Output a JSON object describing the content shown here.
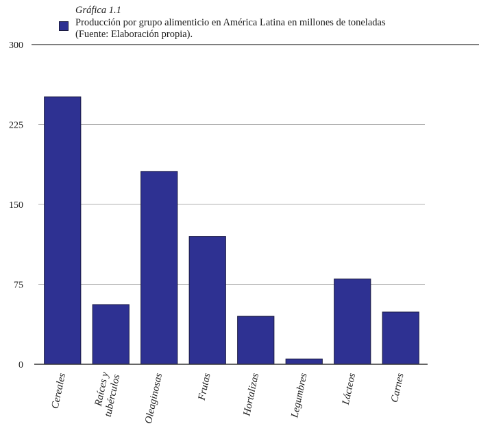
{
  "figure_label": "Gráfica 1.1",
  "chart_data": {
    "type": "bar",
    "title": "Producción por grupo alimenticio en América Latina en millones de toneladas",
    "source": "(Fuente: Elaboración propia).",
    "legend": {
      "label": "Producción por grupo alimenticio en América Latina en millones de toneladas",
      "placement": "top-left"
    },
    "categories": [
      "Cereales",
      "Raíces y tubérculos",
      "Oleaginosas",
      "Frutas",
      "Hortalizas",
      "Legumbres",
      "Lácteos",
      "Carnes"
    ],
    "values": [
      251,
      56,
      181,
      120,
      45,
      5,
      80,
      49
    ],
    "xlabel": "",
    "ylabel": "",
    "ylim": [
      0,
      300
    ],
    "yticks": [
      0,
      75,
      150,
      225,
      300
    ],
    "grid": true,
    "colors": {
      "bar": "#2e3192",
      "bar_edge": "#1a1a40",
      "grid": "#b3b3b3",
      "axis": "#333333"
    }
  }
}
